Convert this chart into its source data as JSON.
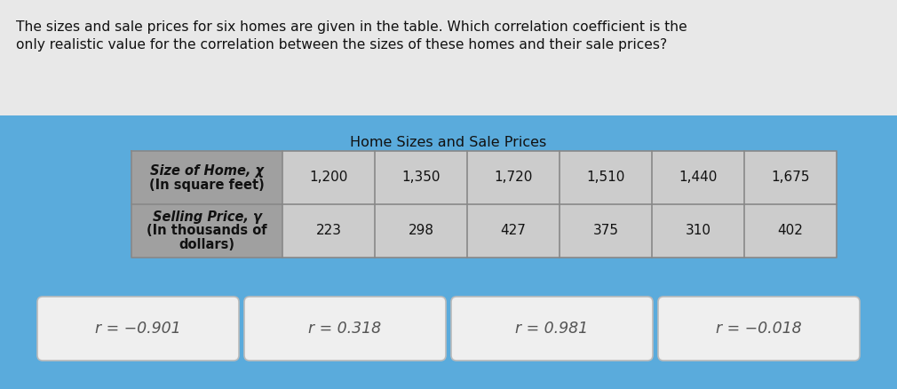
{
  "question_text_line1": "The sizes and sale prices for six homes are given in the table. Which correlation coefficient is the",
  "question_text_line2": "only realistic value for the correlation between the sizes of these homes and their sale prices?",
  "table_title": "Home Sizes and Sale Prices",
  "col_values_row1": [
    "1,200",
    "1,350",
    "1,720",
    "1,510",
    "1,440",
    "1,675"
  ],
  "col_values_row2": [
    "223",
    "298",
    "427",
    "375",
    "310",
    "402"
  ],
  "answer_options": [
    "r = −0.901",
    "r = 0.318",
    "r = 0.981",
    "r = −0.018"
  ],
  "bg_color": "#5aabdc",
  "header_bg_color": "#a0a0a0",
  "cell_bg_color": "#cccccc",
  "button_bg_color": "#efefef",
  "button_border_color": "#bbbbbb",
  "top_bg_color": "#e8e8e8",
  "text_color": "#111111",
  "grid_color": "#888888",
  "font_size_question": 11.2,
  "font_size_table_title": 11.5,
  "font_size_table_data": 11,
  "font_size_table_header": 10.5,
  "font_size_button": 12.5
}
